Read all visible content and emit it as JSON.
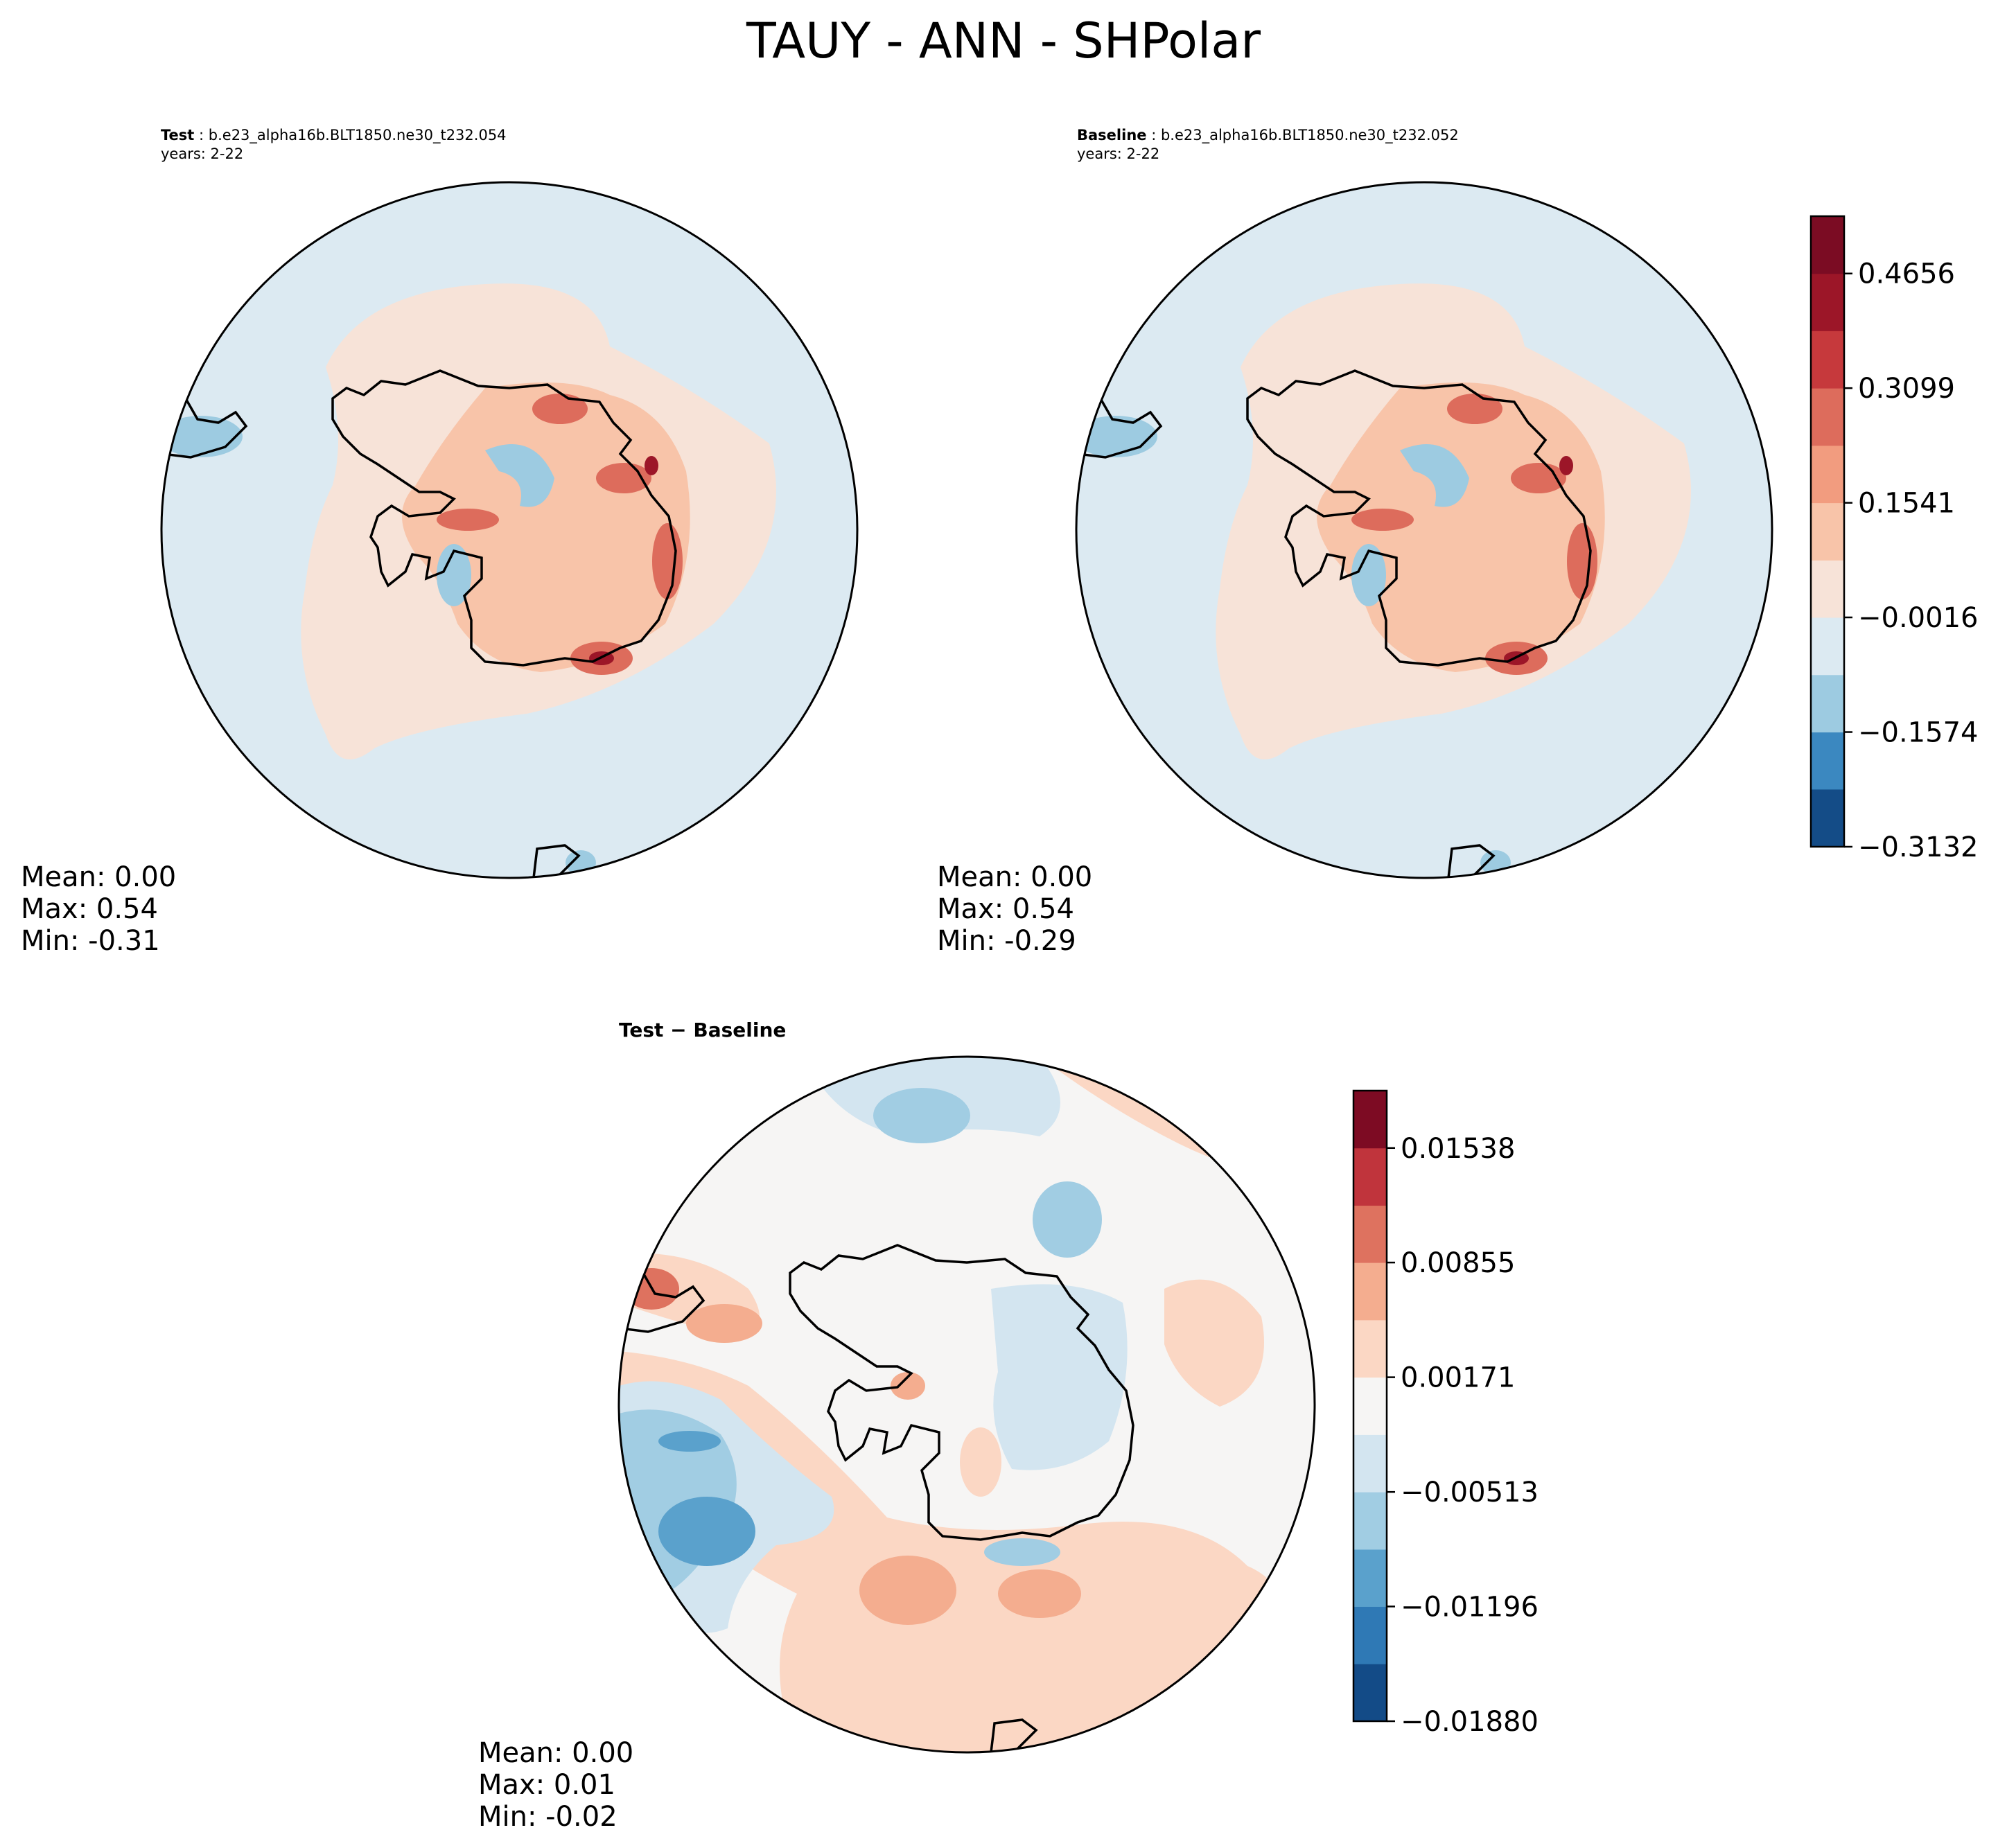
{
  "figure": {
    "title": "TAUY - ANN - SHPolar"
  },
  "test_panel": {
    "label": "Test",
    "case": "b.e23_alpha16b.BLT1850.ne30_t232.054",
    "years": "years: 2-22",
    "stats": {
      "mean": "Mean:  0.00",
      "max": "Max:  0.54",
      "min": "Min: -0.31"
    }
  },
  "baseline_panel": {
    "label": "Baseline",
    "case": "b.e23_alpha16b.BLT1850.ne30_t232.052",
    "years": "years: 2-22",
    "stats": {
      "mean": "Mean:  0.00",
      "max": "Max:  0.54",
      "min": "Min: -0.29"
    }
  },
  "diff_panel": {
    "title": "Test − Baseline",
    "stats": {
      "mean": "Mean:  0.00",
      "max": "Max:  0.01",
      "min": "Min: -0.02"
    }
  },
  "chart_data": [
    {
      "type": "heatmap",
      "name": "Test",
      "projection": "south-polar-stereographic",
      "field": "TAUY",
      "season": "ANN",
      "value_range": [
        -0.31,
        0.54
      ],
      "mean": 0.0
    },
    {
      "type": "heatmap",
      "name": "Baseline",
      "projection": "south-polar-stereographic",
      "field": "TAUY",
      "season": "ANN",
      "value_range": [
        -0.29,
        0.54
      ],
      "mean": 0.0
    },
    {
      "type": "heatmap",
      "name": "Test - Baseline",
      "projection": "south-polar-stereographic",
      "field": "TAUY",
      "season": "ANN",
      "value_range": [
        -0.02,
        0.01
      ],
      "mean": 0.0
    }
  ],
  "colorbars": {
    "main": {
      "levels": [
        -0.3132,
        -0.235,
        -0.1574,
        -0.0795,
        -0.0016,
        0.0762,
        0.1541,
        0.232,
        0.3099,
        0.3878,
        0.4656,
        0.5435
      ],
      "tick_values": [
        -0.3132,
        -0.1574,
        -0.0016,
        0.1541,
        0.3099,
        0.4656
      ],
      "tick_labels": [
        "−0.3132",
        "−0.1574",
        "−0.0016",
        "0.1541",
        "0.3099",
        "0.4656"
      ],
      "colors": [
        "#144c87",
        "#3b88c0",
        "#9dcbe1",
        "#dceaf2",
        "#f7e3d8",
        "#f8c4a9",
        "#f29c7f",
        "#dd6c5c",
        "#c6393c",
        "#9c1628",
        "#7b0c23"
      ]
    },
    "diff": {
      "levels": [
        -0.0188,
        -0.01538,
        -0.01196,
        -0.00855,
        -0.00513,
        -0.00171,
        0.00171,
        0.00513,
        0.00855,
        0.01196,
        0.01538,
        0.0188
      ],
      "tick_values": [
        -0.0188,
        -0.01196,
        -0.00513,
        0.00171,
        0.00855,
        0.01538
      ],
      "tick_labels": [
        "−0.01880",
        "−0.01196",
        "−0.00513",
        "0.00171",
        "0.00855",
        "0.01538"
      ],
      "colors": [
        "#134b87",
        "#2f79b5",
        "#5aa1cc",
        "#a1cde3",
        "#d3e5f0",
        "#f6f5f4",
        "#fbd7c4",
        "#f4ad8f",
        "#de725f",
        "#c0343c",
        "#7d0b23"
      ]
    }
  },
  "map_colors": {
    "ocean_test": "#dceaf2",
    "pos_light": "#f7e3d8",
    "pos_mid": "#f8c4a9",
    "pos_strong": "#dd6c5c",
    "pos_max": "#9c1628",
    "neg_light": "#9dcbe1",
    "neg_mid": "#3b88c0",
    "diff_bg": "#f6f5f4",
    "diff_pos": "#fbd7c4",
    "diff_pos2": "#f4ad8f",
    "diff_neg": "#d3e5f0",
    "diff_neg2": "#a1cde3",
    "diff_neg3": "#5aa1cc"
  }
}
